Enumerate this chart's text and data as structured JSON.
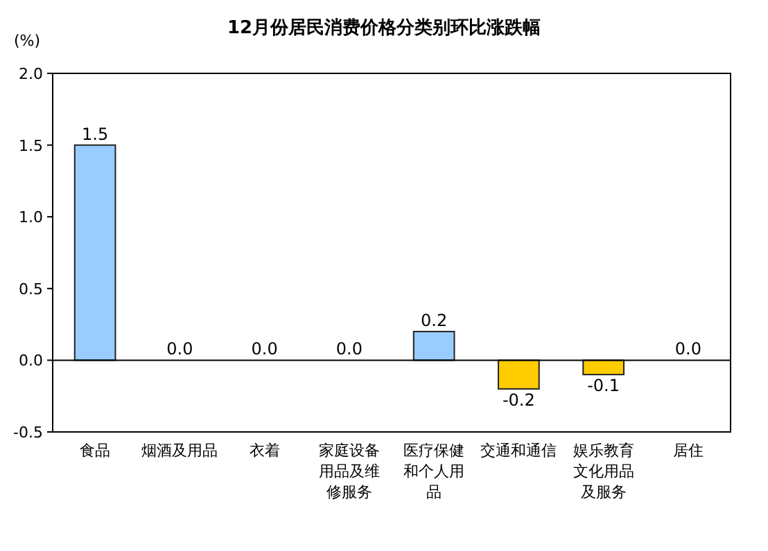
{
  "chart_data": {
    "type": "bar",
    "title": "12月份居民消费价格分类别环比涨跌幅",
    "ylabel": "(%)",
    "categories": [
      "食品",
      "烟酒及用品",
      "衣着",
      "家庭设备用品及维修服务",
      "医疗保健和个人用品",
      "交通和通信",
      "娱乐教育文化用品及服务",
      "居住"
    ],
    "values": [
      1.5,
      0.0,
      0.0,
      0.0,
      0.2,
      -0.2,
      -0.1,
      0.0
    ],
    "colors": [
      "#99ccff",
      "#99ccff",
      "#99ccff",
      "#99ccff",
      "#99ccff",
      "#ffcc00",
      "#ffcc00",
      "#99ccff"
    ],
    "value_labels": [
      "1.5",
      "0.0",
      "0.0",
      "0.0",
      "0.2",
      "-0.2",
      "-0.1",
      "0.0"
    ],
    "ylim": [
      -0.5,
      2.0
    ],
    "yticks": [
      {
        "value": -0.5,
        "label": "-0.5"
      },
      {
        "value": 0,
        "label": "0.0"
      },
      {
        "value": 0.5,
        "label": "0.5"
      },
      {
        "value": 1,
        "label": "1.0"
      },
      {
        "value": 1.5,
        "label": "1.5"
      },
      {
        "value": 2,
        "label": "2.0"
      }
    ]
  }
}
